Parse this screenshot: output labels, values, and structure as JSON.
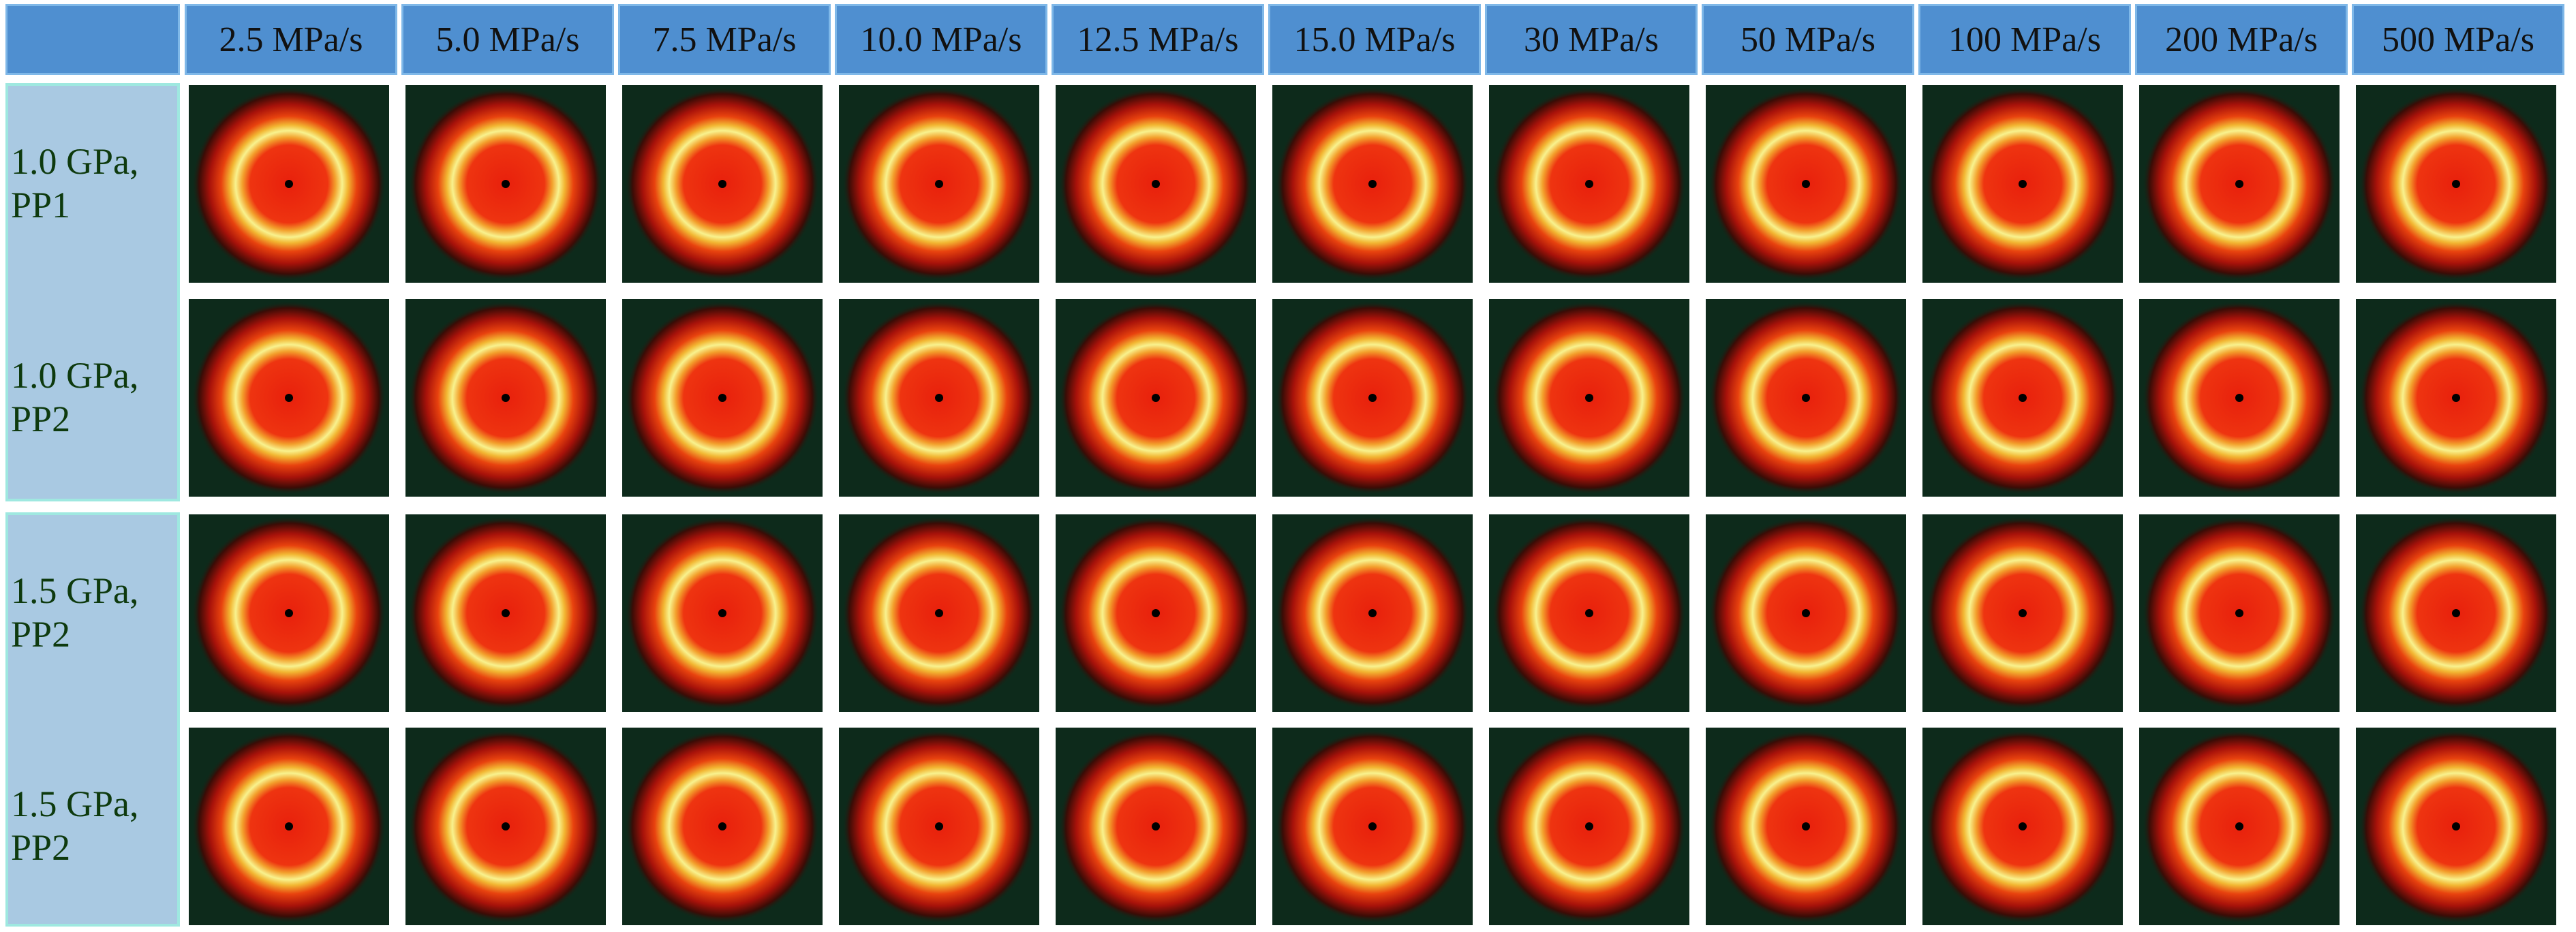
{
  "column_headers": [
    "2.5 MPa/s",
    "5.0 MPa/s",
    "7.5 MPa/s",
    "10.0 MPa/s",
    "12.5 MPa/s",
    "15.0 MPa/s",
    "30 MPa/s",
    "50 MPa/s",
    "100 MPa/s",
    "200 MPa/s",
    "500 MPa/s"
  ],
  "row_labels": [
    "1.0 GPa, PP1",
    "1.0 GPa, PP2",
    "1.5 GPa, PP2",
    "1.5 GPa, PP2"
  ]
}
